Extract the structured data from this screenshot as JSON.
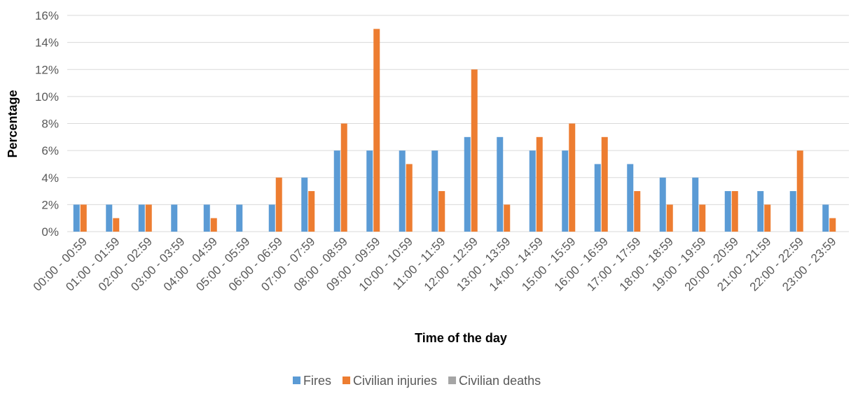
{
  "chart_data": {
    "type": "bar",
    "title": "",
    "xlabel": "Time of the day",
    "ylabel": "Percentage",
    "ylim": [
      0,
      16
    ],
    "ytick_step": 2,
    "ytick_suffix": "%",
    "grid": true,
    "legend_position": "bottom",
    "categories": [
      "00:00 - 00:59",
      "01:00 - 01:59",
      "02:00 - 02:59",
      "03:00 - 03:59",
      "04:00 - 04:59",
      "05:00 - 05:59",
      "06:00 - 06:59",
      "07:00 - 07:59",
      "08:00 - 08:59",
      "09:00 - 09:59",
      "10:00 - 10:59",
      "11:00 - 11:59",
      "12:00 - 12:59",
      "13:00 - 13:59",
      "14:00 - 14:59",
      "15:00 - 15:59",
      "16:00 - 16:59",
      "17:00 - 17:59",
      "18:00 - 18:59",
      "19:00 - 19:59",
      "20:00 - 20:59",
      "21:00 - 21:59",
      "22:00 - 22:59",
      "23:00 - 23:59"
    ],
    "series": [
      {
        "name": "Fires",
        "color": "#5b9bd5",
        "values": [
          2,
          2,
          2,
          2,
          2,
          2,
          2,
          4,
          6,
          6,
          6,
          6,
          7,
          7,
          6,
          6,
          5,
          5,
          4,
          4,
          3,
          3,
          3,
          2
        ]
      },
      {
        "name": "Civilian injuries",
        "color": "#ed7d31",
        "values": [
          2,
          1,
          2,
          0,
          1,
          0,
          4,
          3,
          8,
          15,
          5,
          3,
          12,
          2,
          7,
          8,
          7,
          3,
          2,
          2,
          3,
          2,
          6,
          1
        ]
      },
      {
        "name": "Civilian deaths",
        "color": "#a5a5a5",
        "values": [
          0,
          0,
          0,
          0,
          0,
          0,
          0,
          0,
          0,
          0,
          0,
          0,
          0,
          0,
          0,
          0,
          0,
          0,
          0,
          0,
          0,
          0,
          0,
          0
        ]
      }
    ]
  }
}
